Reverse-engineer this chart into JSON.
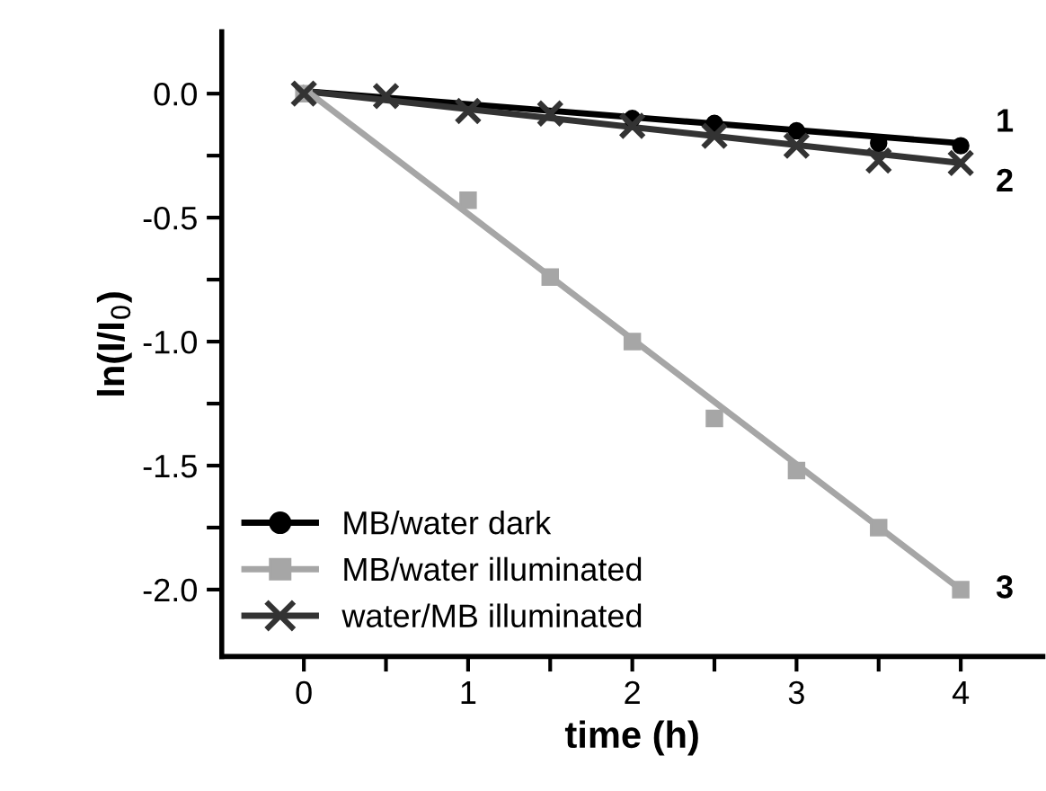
{
  "chart_data": {
    "type": "scatter",
    "xlabel": "time (h)",
    "ylabel": "ln(I/I$_{0}$)",
    "xlim": [
      -0.5,
      4.5
    ],
    "ylim": [
      -2.27,
      0.25
    ],
    "xticks": [
      0,
      {
        "value": 0.5,
        "label": null
      },
      1,
      {
        "value": 1.5,
        "label": null
      },
      2,
      {
        "value": 2.5,
        "label": null
      },
      3,
      {
        "value": 3.5,
        "label": null
      },
      4
    ],
    "yticks": [
      {
        "value": 0,
        "label": "0.0"
      },
      {
        "value": -0.25,
        "label": null
      },
      -0.5,
      {
        "value": -0.75,
        "label": null
      },
      {
        "value": -1,
        "label": "-1.0"
      },
      {
        "value": -1.25,
        "label": null
      },
      -1.5,
      {
        "value": -1.75,
        "label": null
      },
      {
        "value": -2,
        "label": "-2.0"
      }
    ],
    "grid": false,
    "legend": "bottom left",
    "series": [
      {
        "name": "MB/water dark",
        "color": "#000000",
        "marker": "circle",
        "x": [
          2,
          2.5,
          3,
          3.5,
          4
        ],
        "values": [
          -0.1,
          -0.12,
          -0.15,
          -0.2,
          -0.21
        ]
      },
      {
        "name": "MB/water illuminated",
        "color": "#a6a6a6",
        "marker": "square",
        "x": [
          0,
          1,
          1.5,
          2,
          2.5,
          3,
          3.5,
          4
        ],
        "values": [
          0,
          -0.43,
          -0.74,
          -1.0,
          -1.31,
          -1.52,
          -1.75,
          -2.0
        ]
      },
      {
        "name": "water/MB illuminated",
        "color": "#333333",
        "marker": "cross",
        "x": [
          0,
          0.5,
          1,
          1.5,
          2,
          2.5,
          3,
          3.5,
          4
        ],
        "values": [
          0,
          -0.01,
          -0.07,
          -0.08,
          -0.13,
          -0.17,
          -0.21,
          -0.27,
          -0.28
        ]
      },
      {
        "type": "line",
        "color": "#000000",
        "x": [
          0,
          4
        ],
        "values": [
          0.01,
          -0.2
        ]
      },
      {
        "type": "line",
        "color": "#333333",
        "x": [
          0,
          4
        ],
        "values": [
          0.01,
          -0.28
        ]
      },
      {
        "type": "line",
        "color": "#a6a6a6",
        "x": [
          0,
          4
        ],
        "values": [
          0.02,
          -2.0
        ]
      }
    ],
    "annotations": [
      "1",
      "2",
      "3"
    ]
  }
}
